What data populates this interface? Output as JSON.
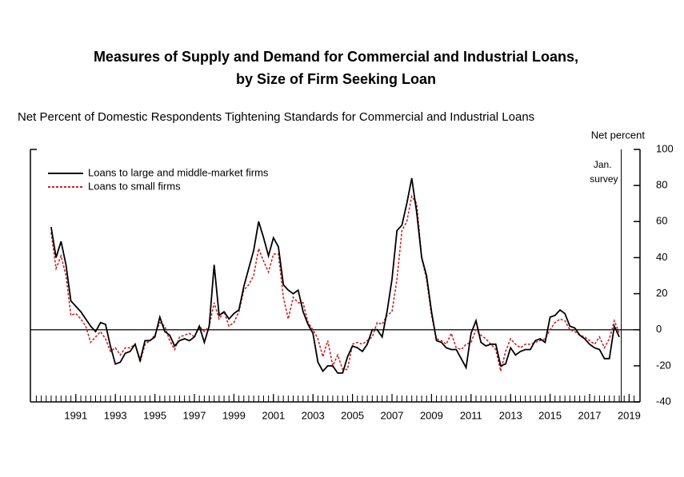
{
  "chart_data": {
    "type": "line",
    "title_lines": [
      "Measures of Supply and Demand for Commercial and Industrial Loans,",
      "by Size of Firm Seeking Loan"
    ],
    "subtitle": "Net Percent of Domestic Respondents Tightening Standards for Commercial and Industrial Loans",
    "y_axis_label": "Net percent",
    "annotation": {
      "lines": [
        "Jan.",
        "survey"
      ],
      "x": 2019.1
    },
    "x": [
      1990.25,
      1990.5,
      1990.75,
      1991,
      1991.25,
      1991.5,
      1991.75,
      1992,
      1992.25,
      1992.5,
      1992.75,
      1993,
      1993.25,
      1993.5,
      1993.75,
      1994,
      1994.25,
      1994.5,
      1994.75,
      1995,
      1995.25,
      1995.5,
      1995.75,
      1996,
      1996.25,
      1996.5,
      1996.75,
      1997,
      1997.25,
      1997.5,
      1997.75,
      1998,
      1998.25,
      1998.5,
      1998.75,
      1999,
      1999.25,
      1999.5,
      1999.75,
      2000,
      2000.25,
      2000.5,
      2000.75,
      2001,
      2001.25,
      2001.5,
      2001.75,
      2002,
      2002.25,
      2002.5,
      2002.75,
      2003,
      2003.25,
      2003.5,
      2003.75,
      2004,
      2004.25,
      2004.5,
      2004.75,
      2005,
      2005.25,
      2005.5,
      2005.75,
      2006,
      2006.25,
      2006.5,
      2006.75,
      2007,
      2007.25,
      2007.5,
      2007.75,
      2008,
      2008.25,
      2008.5,
      2008.75,
      2009,
      2009.25,
      2009.5,
      2009.75,
      2010,
      2010.25,
      2010.5,
      2010.75,
      2011,
      2011.25,
      2011.5,
      2011.75,
      2012,
      2012.25,
      2012.5,
      2012.75,
      2013,
      2013.25,
      2013.5,
      2013.75,
      2014,
      2014.25,
      2014.5,
      2014.75,
      2015,
      2015.25,
      2015.5,
      2015.75,
      2016,
      2016.25,
      2016.5,
      2016.75,
      2017,
      2017.25,
      2017.5,
      2017.75,
      2018,
      2018.25,
      2018.5,
      2018.75,
      2019
    ],
    "series": [
      {
        "name": "Loans to large and middle-market firms",
        "color": "#000000",
        "dash": false,
        "values": [
          57,
          40,
          49,
          36,
          16,
          13,
          10,
          6,
          2,
          -1,
          4,
          3,
          -9,
          -19,
          -18,
          -13,
          -12,
          -8,
          -17,
          -6,
          -6,
          -4,
          7,
          -1,
          -3,
          -9,
          -6,
          -5,
          -6,
          -4,
          2,
          -7,
          2,
          36,
          8,
          10,
          6,
          9,
          11,
          24,
          34,
          44,
          60,
          51,
          41,
          51,
          46,
          25,
          22,
          20,
          22,
          10,
          3,
          -2,
          -18,
          -23,
          -20,
          -20,
          -24,
          -24,
          -15,
          -9,
          -10,
          -12,
          -8,
          0,
          0,
          -4,
          10,
          28,
          55,
          58,
          70,
          84,
          65,
          40,
          30,
          10,
          -6,
          -7,
          -10,
          -11,
          -11,
          -16,
          -21,
          -2,
          5,
          -7,
          -9,
          -8,
          -8,
          -20,
          -19,
          -10,
          -14,
          -12,
          -11,
          -11,
          -6,
          -5,
          -7,
          7,
          8,
          11,
          9,
          2,
          1,
          -3,
          -5,
          -8,
          -10,
          -11,
          -16,
          -16,
          2,
          -4
        ]
      },
      {
        "name": "Loans to small firms",
        "color": "#c8262b",
        "dash": true,
        "values": [
          54,
          34,
          41,
          30,
          8,
          9,
          6,
          2,
          -7,
          -4,
          -1,
          -5,
          -12,
          -10,
          -14,
          -10,
          -10,
          -8,
          -18,
          -8,
          -6,
          -3,
          4,
          2,
          -6,
          -11,
          -4,
          -3,
          -2,
          -4,
          2,
          -1,
          2,
          15,
          6,
          10,
          2,
          4,
          10,
          22,
          25,
          30,
          45,
          38,
          32,
          42,
          42,
          18,
          6,
          18,
          15,
          15,
          4,
          0,
          -5,
          -15,
          -6,
          -20,
          -14,
          -22,
          -22,
          -8,
          -7,
          -8,
          -6,
          -4,
          4,
          3,
          8,
          10,
          28,
          55,
          60,
          74,
          70,
          40,
          28,
          8,
          -5,
          -6,
          -8,
          -2,
          -10,
          -11,
          -8,
          -7,
          0,
          -3,
          -5,
          -8,
          -11,
          -23,
          -12,
          -5,
          -8,
          -10,
          -8,
          -8,
          -7,
          -6,
          -5,
          0,
          4,
          6,
          5,
          0,
          -1,
          -3,
          -4,
          -6,
          -8,
          -4,
          -10,
          -5,
          5,
          -2
        ]
      }
    ],
    "xlim": [
      1989.2,
      2020.05
    ],
    "xticks": [
      {
        "value": 1991.5,
        "label": "1991"
      },
      {
        "value": 1993.5,
        "label": "1993"
      },
      {
        "value": 1995.5,
        "label": "1995"
      },
      {
        "value": 1997.5,
        "label": "1997"
      },
      {
        "value": 1999.5,
        "label": "1999"
      },
      {
        "value": 2001.5,
        "label": "2001"
      },
      {
        "value": 2003.5,
        "label": "2003"
      },
      {
        "value": 2005.5,
        "label": "2005"
      },
      {
        "value": 2007.5,
        "label": "2007"
      },
      {
        "value": 2009.5,
        "label": "2009"
      },
      {
        "value": 2011.5,
        "label": "2011"
      },
      {
        "value": 2013.5,
        "label": "2013"
      },
      {
        "value": 2015.5,
        "label": "2015"
      },
      {
        "value": 2017.5,
        "label": "2017"
      },
      {
        "value": 2019.5,
        "label": "2019"
      }
    ],
    "ylim": [
      -40,
      100
    ],
    "yticks": [
      -40,
      -20,
      0,
      20,
      40,
      60,
      80,
      100
    ],
    "zero_line": true,
    "legend": "upper left"
  }
}
